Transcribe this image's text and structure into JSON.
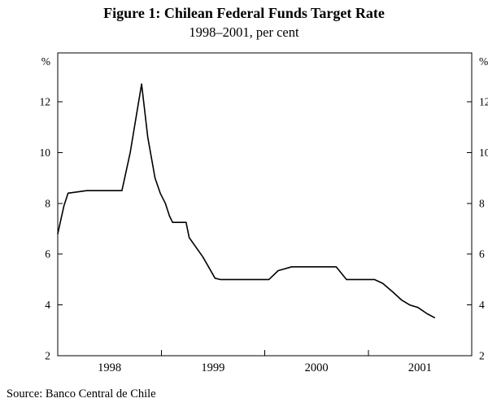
{
  "chart_data": {
    "type": "line",
    "title": "Figure 1: Chilean Federal Funds Target Rate",
    "subtitle": "1998–2001, per cent",
    "source": "Source: Banco Central de Chile",
    "ylabel_left": "%",
    "ylabel_right": "%",
    "ylim": [
      2,
      13.9
    ],
    "yticks": [
      2,
      4,
      6,
      8,
      10,
      12
    ],
    "xlim": [
      1998,
      2002
    ],
    "xticks": [
      1998,
      1999,
      2000,
      2001
    ],
    "xtick_marks": [
      1999,
      2000,
      2001
    ],
    "grid": false,
    "legend_position": "none",
    "line_color": "#000000",
    "background_color": "#ffffff",
    "series": [
      {
        "name": "Chilean federal funds target rate",
        "points": [
          [
            1998.0,
            6.8
          ],
          [
            1998.06,
            7.9
          ],
          [
            1998.1,
            8.4
          ],
          [
            1998.28,
            8.5
          ],
          [
            1998.62,
            8.5
          ],
          [
            1998.7,
            10.0
          ],
          [
            1998.81,
            12.7
          ],
          [
            1998.87,
            10.6
          ],
          [
            1998.94,
            9.0
          ],
          [
            1998.99,
            8.4
          ],
          [
            1999.04,
            8.0
          ],
          [
            1999.08,
            7.5
          ],
          [
            1999.11,
            7.25
          ],
          [
            1999.24,
            7.25
          ],
          [
            1999.27,
            6.65
          ],
          [
            1999.4,
            5.9
          ],
          [
            1999.52,
            5.05
          ],
          [
            1999.57,
            5.0
          ],
          [
            2000.04,
            5.0
          ],
          [
            2000.13,
            5.35
          ],
          [
            2000.26,
            5.5
          ],
          [
            2000.69,
            5.5
          ],
          [
            2000.74,
            5.25
          ],
          [
            2000.79,
            5.0
          ],
          [
            2001.06,
            5.0
          ],
          [
            2001.14,
            4.85
          ],
          [
            2001.24,
            4.5
          ],
          [
            2001.32,
            4.2
          ],
          [
            2001.4,
            4.0
          ],
          [
            2001.48,
            3.9
          ],
          [
            2001.57,
            3.65
          ],
          [
            2001.64,
            3.5
          ]
        ]
      }
    ]
  }
}
